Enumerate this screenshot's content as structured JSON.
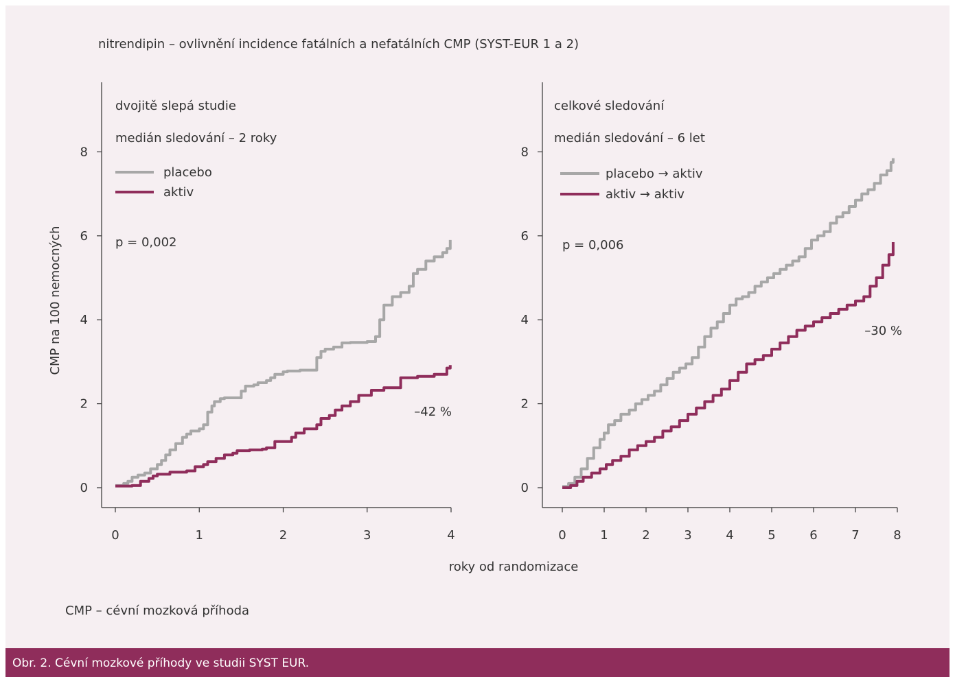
{
  "figure_title": "nitrendipin – ovlivnění incidence fatálních a nefatálních CMP (SYST-EUR 1 a 2)",
  "ylabel": "CMP na 100 nemocných",
  "xlabel": "roky od randomizace",
  "footnote": "CMP – cévní mozková příhoda",
  "caption": "Obr. 2. Cévní mozkové příhody ve studii SYST EUR.",
  "colors": {
    "placebo": "#a7a7a7",
    "aktiv": "#8f2d5b",
    "caption_bar": "#8f2d5b",
    "background": "#f6eff2"
  },
  "chart_data": [
    {
      "type": "line",
      "step": true,
      "heading": "dvojitě slepá studie",
      "subheading": "medián sledování – 2 roky",
      "p_value": "p = 0,002",
      "reduction_label": "–42 %",
      "xlim": [
        0,
        4
      ],
      "ylim": [
        0,
        9.5
      ],
      "x_ticks": [
        0,
        1,
        2,
        3,
        4
      ],
      "y_ticks": [
        0,
        2,
        4,
        6,
        8
      ],
      "legend": [
        "placebo",
        "aktiv"
      ],
      "series": [
        {
          "name": "placebo",
          "color": "#a7a7a7",
          "x": [
            0,
            0.1,
            0.15,
            0.2,
            0.27,
            0.35,
            0.42,
            0.5,
            0.55,
            0.6,
            0.65,
            0.72,
            0.8,
            0.85,
            0.9,
            1.0,
            1.05,
            1.1,
            1.15,
            1.18,
            1.25,
            1.3,
            1.5,
            1.55,
            1.65,
            1.7,
            1.8,
            1.85,
            1.9,
            2.0,
            2.05,
            2.1,
            2.2,
            2.4,
            2.45,
            2.5,
            2.6,
            2.7,
            2.8,
            3.0,
            3.1,
            3.15,
            3.2,
            3.3,
            3.4,
            3.5,
            3.55,
            3.6,
            3.7,
            3.8,
            3.9,
            3.95,
            3.99
          ],
          "y": [
            0.05,
            0.1,
            0.15,
            0.25,
            0.3,
            0.35,
            0.45,
            0.55,
            0.65,
            0.78,
            0.9,
            1.05,
            1.2,
            1.28,
            1.35,
            1.4,
            1.5,
            1.8,
            1.95,
            2.05,
            2.12,
            2.14,
            2.3,
            2.42,
            2.45,
            2.5,
            2.55,
            2.62,
            2.7,
            2.76,
            2.78,
            2.78,
            2.8,
            3.1,
            3.25,
            3.3,
            3.35,
            3.45,
            3.46,
            3.48,
            3.6,
            4.0,
            4.35,
            4.55,
            4.65,
            4.8,
            5.1,
            5.2,
            5.4,
            5.5,
            5.6,
            5.7,
            5.9
          ]
        },
        {
          "name": "aktiv",
          "color": "#8f2d5b",
          "x": [
            0,
            0.2,
            0.3,
            0.4,
            0.45,
            0.5,
            0.65,
            0.85,
            0.95,
            1.05,
            1.1,
            1.2,
            1.3,
            1.4,
            1.45,
            1.6,
            1.75,
            1.8,
            1.9,
            2.1,
            2.15,
            2.25,
            2.4,
            2.45,
            2.55,
            2.62,
            2.7,
            2.8,
            2.9,
            3.05,
            3.2,
            3.4,
            3.6,
            3.8,
            3.95,
            3.99
          ],
          "y": [
            0.04,
            0.05,
            0.15,
            0.22,
            0.28,
            0.32,
            0.37,
            0.4,
            0.5,
            0.55,
            0.62,
            0.7,
            0.78,
            0.82,
            0.88,
            0.9,
            0.92,
            0.95,
            1.1,
            1.2,
            1.3,
            1.4,
            1.5,
            1.65,
            1.72,
            1.85,
            1.95,
            2.05,
            2.2,
            2.32,
            2.38,
            2.62,
            2.65,
            2.7,
            2.85,
            2.92
          ]
        }
      ]
    },
    {
      "type": "line",
      "step": true,
      "heading": "celkové sledování",
      "subheading": "medián sledování – 6 let",
      "p_value": "p = 0,006",
      "reduction_label": "–30 %",
      "xlim": [
        0,
        8
      ],
      "ylim": [
        0,
        9.5
      ],
      "x_ticks": [
        0,
        1,
        2,
        3,
        4,
        5,
        6,
        7,
        8
      ],
      "y_ticks": [
        0,
        2,
        4,
        6,
        8
      ],
      "legend": [
        "placebo → aktiv",
        "aktiv → aktiv"
      ],
      "series": [
        {
          "name": "placebo → aktiv",
          "color": "#a7a7a7",
          "x": [
            0,
            0.15,
            0.3,
            0.45,
            0.6,
            0.75,
            0.9,
            1.0,
            1.1,
            1.25,
            1.4,
            1.6,
            1.75,
            1.9,
            2.05,
            2.2,
            2.35,
            2.5,
            2.65,
            2.8,
            2.95,
            3.1,
            3.25,
            3.4,
            3.55,
            3.7,
            3.85,
            4.0,
            4.15,
            4.3,
            4.45,
            4.6,
            4.75,
            4.9,
            5.05,
            5.2,
            5.35,
            5.5,
            5.65,
            5.8,
            5.95,
            6.1,
            6.25,
            6.4,
            6.55,
            6.7,
            6.85,
            7.0,
            7.15,
            7.3,
            7.45,
            7.6,
            7.75,
            7.85,
            7.9
          ],
          "y": [
            0.03,
            0.1,
            0.25,
            0.45,
            0.7,
            0.95,
            1.15,
            1.3,
            1.5,
            1.6,
            1.75,
            1.85,
            2.0,
            2.1,
            2.2,
            2.3,
            2.45,
            2.6,
            2.75,
            2.85,
            2.95,
            3.1,
            3.35,
            3.6,
            3.8,
            3.95,
            4.15,
            4.35,
            4.5,
            4.55,
            4.65,
            4.8,
            4.9,
            5.0,
            5.1,
            5.2,
            5.3,
            5.4,
            5.5,
            5.7,
            5.9,
            6.0,
            6.1,
            6.3,
            6.45,
            6.55,
            6.7,
            6.85,
            7.0,
            7.1,
            7.25,
            7.45,
            7.55,
            7.75,
            7.85
          ]
        },
        {
          "name": "aktiv → aktiv",
          "color": "#8f2d5b",
          "x": [
            0,
            0.2,
            0.35,
            0.5,
            0.7,
            0.9,
            1.05,
            1.2,
            1.4,
            1.6,
            1.8,
            2.0,
            2.2,
            2.4,
            2.6,
            2.8,
            3.0,
            3.2,
            3.4,
            3.6,
            3.8,
            4.0,
            4.2,
            4.4,
            4.6,
            4.8,
            5.0,
            5.2,
            5.4,
            5.6,
            5.8,
            6.0,
            6.2,
            6.4,
            6.6,
            6.8,
            7.0,
            7.2,
            7.35,
            7.5,
            7.65,
            7.8,
            7.9
          ],
          "y": [
            0.0,
            0.05,
            0.15,
            0.25,
            0.35,
            0.45,
            0.55,
            0.65,
            0.75,
            0.9,
            1.0,
            1.1,
            1.2,
            1.35,
            1.45,
            1.6,
            1.75,
            1.9,
            2.05,
            2.2,
            2.35,
            2.55,
            2.75,
            2.95,
            3.05,
            3.15,
            3.3,
            3.45,
            3.6,
            3.75,
            3.85,
            3.95,
            4.05,
            4.15,
            4.25,
            4.35,
            4.45,
            4.55,
            4.8,
            5.0,
            5.3,
            5.55,
            5.85
          ]
        }
      ]
    }
  ]
}
